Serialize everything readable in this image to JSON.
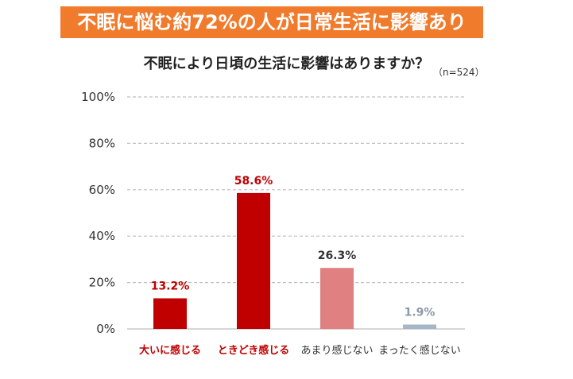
{
  "banner": {
    "text": "不眠に悩む約72%の人が日常生活に影響あり",
    "color": "#F07B2C"
  },
  "chart_data": {
    "type": "bar",
    "title": "不眠により日頃の生活に影響はありますか？",
    "note": "（n=524）",
    "categories": [
      "大いに感じる",
      "ときどき感じる",
      "あまり感じない",
      "まったく感じない"
    ],
    "values": [
      13.2,
      58.6,
      26.3,
      1.9
    ],
    "value_labels": [
      "13.2%",
      "58.6%",
      "26.3%",
      "1.9%"
    ],
    "bar_colors": [
      "#C00000",
      "#C00000",
      "#E08080",
      "#A6B6C6"
    ],
    "label_colors": [
      "#C00000",
      "#C00000",
      "#333333",
      "#8A9AAA"
    ],
    "category_colors": [
      "#C00000",
      "#C00000",
      "#333333",
      "#333333"
    ],
    "category_bold": [
      true,
      true,
      false,
      false
    ],
    "yticks": [
      "0%",
      "20%",
      "40%",
      "60%",
      "80%",
      "100%"
    ],
    "ylim": [
      0,
      100
    ],
    "grid": true,
    "gridline_color": "#BFBFBF"
  }
}
